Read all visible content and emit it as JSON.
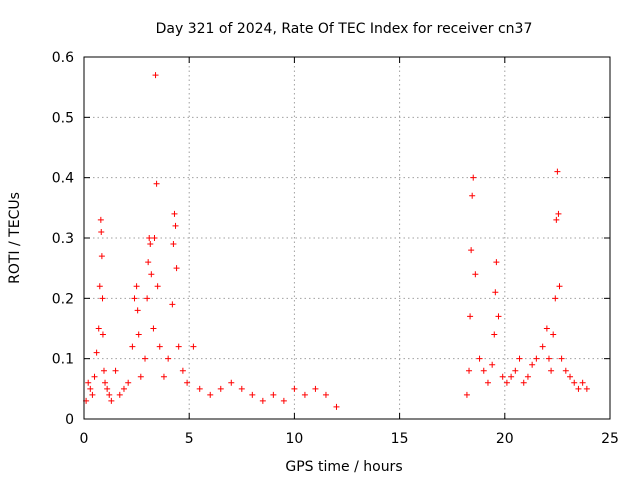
{
  "chart_data": {
    "type": "scatter",
    "title": "Day 321 of 2024, Rate Of TEC Index for receiver cn37",
    "xlabel": "GPS time / hours",
    "ylabel": "ROTI / TECUs",
    "xlim": [
      0,
      25
    ],
    "ylim": [
      0,
      0.6
    ],
    "xticks": [
      "0",
      "5",
      "10",
      "15",
      "20",
      "25"
    ],
    "yticks": [
      "0",
      "0.1",
      "0.2",
      "0.3",
      "0.4",
      "0.5",
      "0.6"
    ],
    "grid": true,
    "marker": "plus",
    "color": "#ff0000",
    "series": [
      {
        "name": "ROTI",
        "x": [
          0.1,
          0.2,
          0.3,
          0.4,
          0.5,
          0.6,
          0.7,
          0.75,
          0.8,
          0.82,
          0.85,
          0.88,
          0.9,
          0.95,
          1.0,
          1.1,
          1.2,
          1.3,
          1.5,
          1.7,
          1.9,
          2.1,
          2.3,
          2.4,
          2.5,
          2.55,
          2.6,
          2.7,
          2.9,
          3.0,
          3.05,
          3.1,
          3.15,
          3.2,
          3.3,
          3.35,
          3.4,
          3.45,
          3.5,
          3.6,
          3.8,
          4.0,
          4.2,
          4.25,
          4.3,
          4.35,
          4.4,
          4.5,
          4.7,
          4.9,
          5.2,
          5.5,
          6.0,
          6.5,
          7.0,
          7.5,
          8.0,
          8.5,
          9.0,
          9.5,
          10.0,
          10.5,
          11.0,
          11.5,
          12.0,
          18.2,
          18.3,
          18.35,
          18.4,
          18.45,
          18.5,
          18.6,
          18.8,
          19.0,
          19.2,
          19.4,
          19.5,
          19.55,
          19.6,
          19.7,
          19.9,
          20.1,
          20.3,
          20.5,
          20.7,
          20.9,
          21.1,
          21.3,
          21.5,
          21.8,
          22.0,
          22.1,
          22.2,
          22.3,
          22.4,
          22.45,
          22.5,
          22.55,
          22.6,
          22.7,
          22.9,
          23.1,
          23.3,
          23.5,
          23.7,
          23.9
        ],
        "y": [
          0.03,
          0.06,
          0.05,
          0.04,
          0.07,
          0.11,
          0.15,
          0.22,
          0.33,
          0.31,
          0.27,
          0.2,
          0.14,
          0.08,
          0.06,
          0.05,
          0.04,
          0.03,
          0.08,
          0.04,
          0.05,
          0.06,
          0.12,
          0.2,
          0.22,
          0.18,
          0.14,
          0.07,
          0.1,
          0.2,
          0.26,
          0.3,
          0.29,
          0.24,
          0.15,
          0.3,
          0.57,
          0.39,
          0.22,
          0.12,
          0.07,
          0.1,
          0.19,
          0.29,
          0.34,
          0.32,
          0.25,
          0.12,
          0.08,
          0.06,
          0.12,
          0.05,
          0.04,
          0.05,
          0.06,
          0.05,
          0.04,
          0.03,
          0.04,
          0.03,
          0.05,
          0.04,
          0.05,
          0.04,
          0.02,
          0.04,
          0.08,
          0.17,
          0.28,
          0.37,
          0.4,
          0.24,
          0.1,
          0.08,
          0.06,
          0.09,
          0.14,
          0.21,
          0.26,
          0.17,
          0.07,
          0.06,
          0.07,
          0.08,
          0.1,
          0.06,
          0.07,
          0.09,
          0.1,
          0.12,
          0.15,
          0.1,
          0.08,
          0.14,
          0.2,
          0.33,
          0.41,
          0.34,
          0.22,
          0.1,
          0.08,
          0.07,
          0.06,
          0.05,
          0.06,
          0.05
        ]
      }
    ]
  }
}
